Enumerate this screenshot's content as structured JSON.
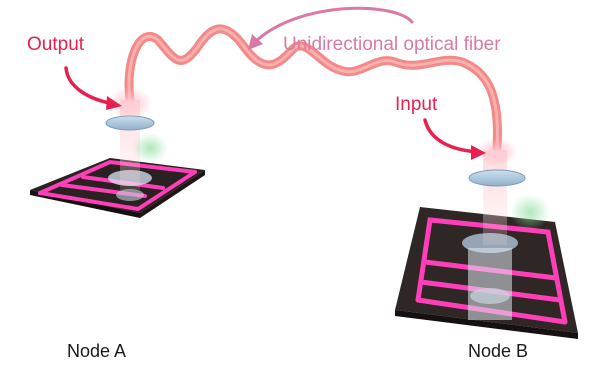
{
  "labels": {
    "output": "Output",
    "input": "Input",
    "fiber": "Unidirectional optical fiber",
    "node_a": "Node A",
    "node_b": "Node B"
  },
  "colors": {
    "fiber": "#f07a7a",
    "label_red": "#e8204f",
    "label_pink": "#d97aa6",
    "chip": "#3b3030",
    "waveguide": "#ff3fb8",
    "lens": "#a9c4dc",
    "leak": "#9fe0a8"
  }
}
